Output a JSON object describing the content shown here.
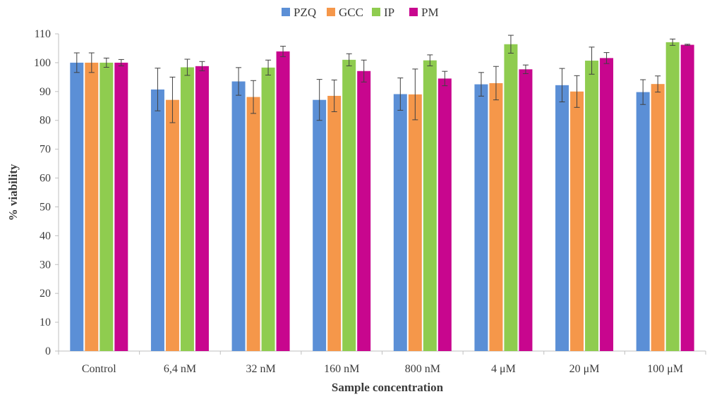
{
  "chart_data": {
    "type": "bar",
    "title": "",
    "xlabel": "Sample concentration",
    "ylabel": "% viability",
    "ylim": [
      0,
      110
    ],
    "yticks": [
      0,
      10,
      20,
      30,
      40,
      50,
      60,
      70,
      80,
      90,
      100,
      110
    ],
    "grid": false,
    "legend_position": "top-center",
    "categories": [
      "Control",
      "6,4 nM",
      "32 nM",
      "160 nM",
      "800 nM",
      "4 μM",
      "20 μM",
      "100 μM"
    ],
    "series": [
      {
        "name": "PZQ",
        "color": "#5b8fd6",
        "values": [
          100,
          90.7,
          93.5,
          87.1,
          89.1,
          92.5,
          92.2,
          89.8
        ],
        "errors": [
          3.4,
          7.4,
          4.8,
          7.1,
          5.6,
          4.1,
          5.8,
          4.3
        ]
      },
      {
        "name": "GCC",
        "color": "#f5974a",
        "values": [
          100,
          87.1,
          88.1,
          88.5,
          89.0,
          92.9,
          90.0,
          92.6
        ],
        "errors": [
          3.4,
          7.9,
          5.7,
          5.5,
          8.8,
          5.8,
          5.5,
          2.8
        ]
      },
      {
        "name": "IP",
        "color": "#8fcc4f",
        "values": [
          100,
          98.4,
          98.3,
          101.0,
          100.8,
          106.4,
          100.7,
          107.1
        ],
        "errors": [
          1.6,
          2.8,
          2.6,
          2.1,
          1.9,
          3.1,
          4.7,
          1.1
        ]
      },
      {
        "name": "PM",
        "color": "#c8068e",
        "values": [
          100,
          98.8,
          103.9,
          97.1,
          94.5,
          97.7,
          101.6,
          106.2
        ],
        "errors": [
          1.1,
          1.6,
          1.8,
          3.8,
          2.5,
          1.5,
          1.9,
          0.2
        ]
      }
    ]
  }
}
